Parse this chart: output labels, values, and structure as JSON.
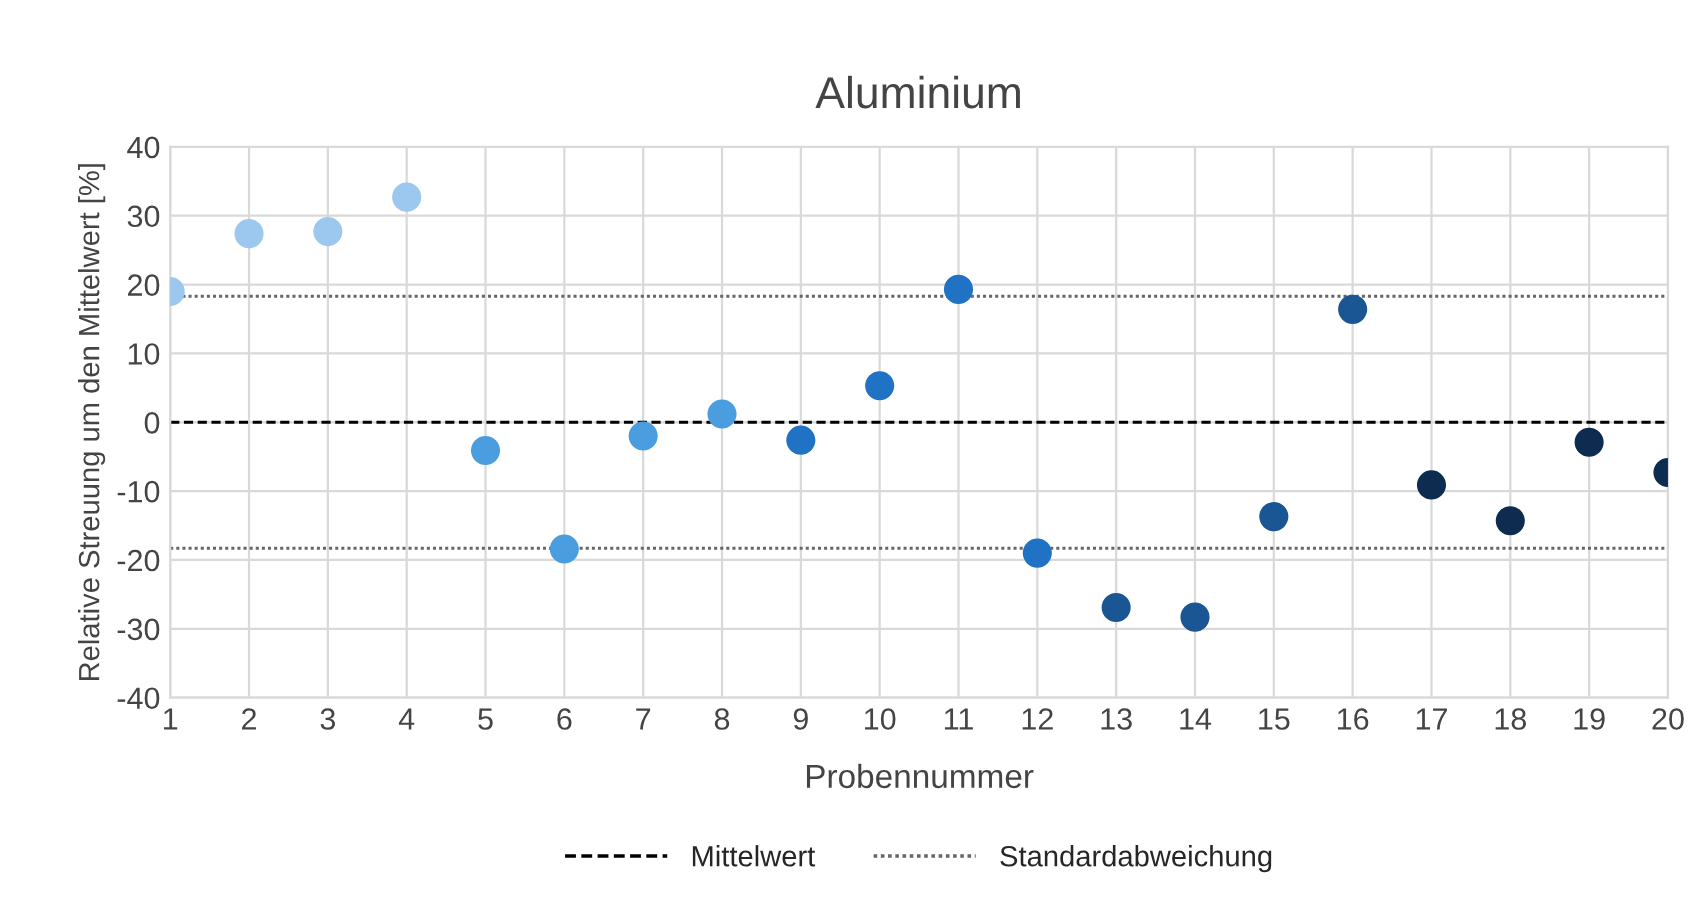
{
  "chart_data": {
    "type": "scatter",
    "title": "Aluminium",
    "xlabel": "Probennummer",
    "ylabel": "Relative Streuung um den Mittelwert [%]",
    "x": [
      1,
      2,
      3,
      4,
      5,
      6,
      7,
      8,
      9,
      10,
      11,
      12,
      13,
      14,
      15,
      16,
      17,
      18,
      19,
      20
    ],
    "values": [
      19.0,
      27.4,
      27.7,
      32.7,
      -4.1,
      -18.4,
      -2.0,
      1.2,
      -2.6,
      5.3,
      19.3,
      -19.0,
      -26.9,
      -28.3,
      -13.7,
      16.4,
      -9.1,
      -14.3,
      -2.9,
      -7.3
    ],
    "colors": [
      "#9cc7ee",
      "#9cc7ee",
      "#9cc7ee",
      "#9cc7ee",
      "#4a9ee0",
      "#4a9ee0",
      "#4a9ee0",
      "#4a9ee0",
      "#1f72c4",
      "#1f72c4",
      "#1f72c4",
      "#1f72c4",
      "#1a5694",
      "#1a5694",
      "#1a5694",
      "#1a5694",
      "#0d2c50",
      "#0d2c50",
      "#0d2c50",
      "#0d2c50"
    ],
    "xlim": [
      1,
      20
    ],
    "xticks": [
      1,
      2,
      3,
      4,
      5,
      6,
      7,
      8,
      9,
      10,
      11,
      12,
      13,
      14,
      15,
      16,
      17,
      18,
      19,
      20
    ],
    "ylim": [
      -40,
      40
    ],
    "yticks": [
      -40,
      -30,
      -20,
      -10,
      0,
      10,
      20,
      30,
      40
    ],
    "ref_lines": [
      {
        "axis": "y",
        "value": 0,
        "label": "Mittelwert",
        "color": "#000000",
        "line_style": "dashed"
      },
      {
        "axis": "y",
        "value": 18.3,
        "label": "Standardabweichung",
        "color": "#666666",
        "line_style": "dotted"
      },
      {
        "axis": "y",
        "value": -18.3,
        "label": null,
        "color": "#666666",
        "line_style": "dotted"
      }
    ],
    "grid": true,
    "legend": "bottom",
    "marker": "circle"
  }
}
